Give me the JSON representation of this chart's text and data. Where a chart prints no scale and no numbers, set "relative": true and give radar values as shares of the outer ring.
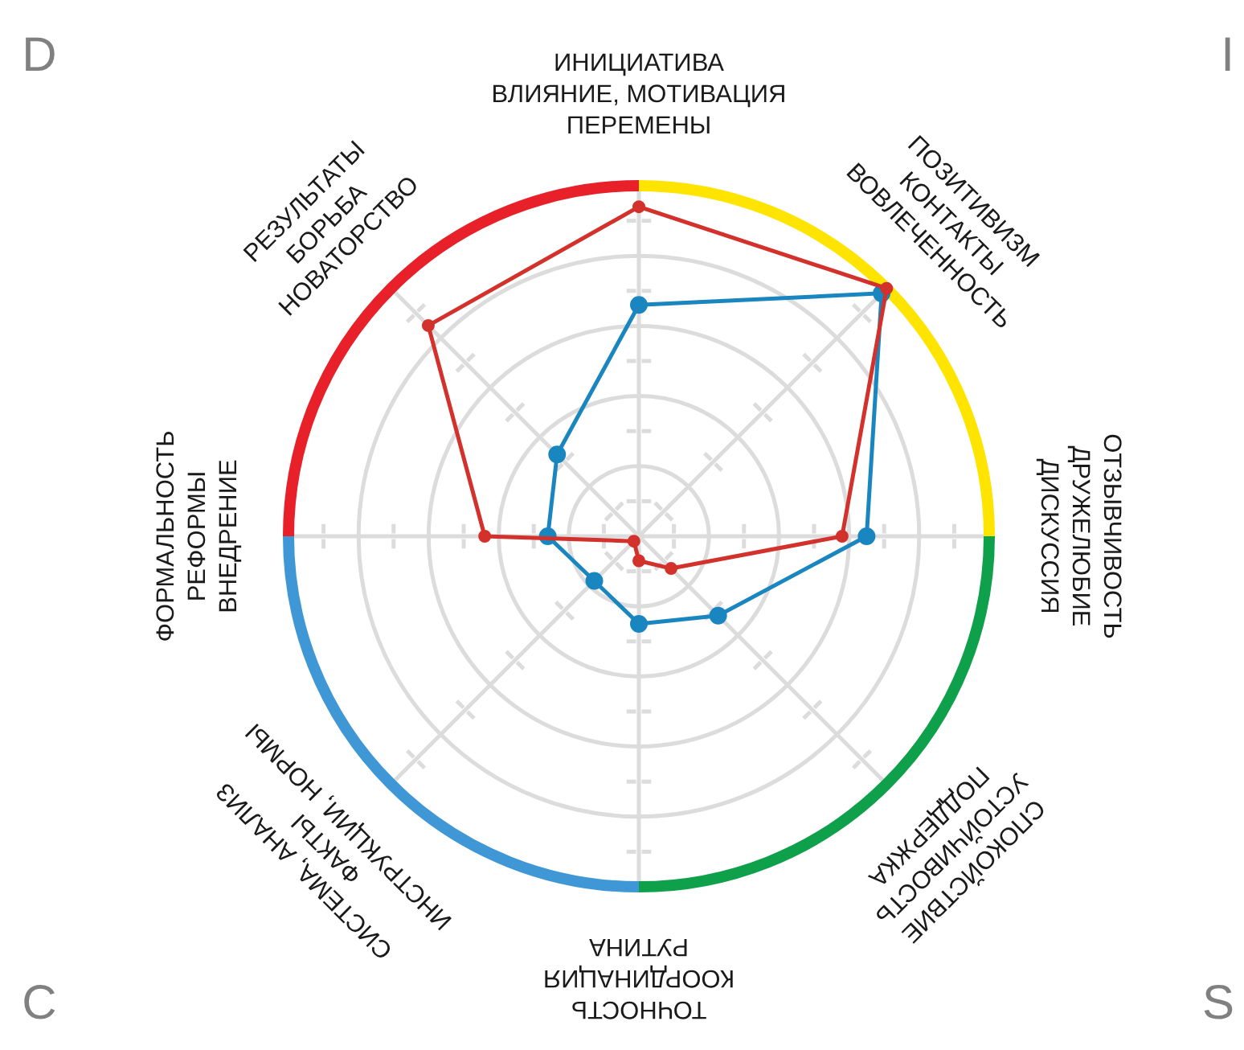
{
  "chart_data": {
    "type": "radar",
    "relative": true,
    "grid": true,
    "marker": "circle",
    "categories": [
      "ИНИЦИАТИВА\nВЛИЯНИЕ, МОТИВАЦИЯ\nПЕРЕМЕНЫ",
      "ПОЗИТИВИЗМ\nКОНТАКТЫ\nВОВЛЕЧЕННОСТЬ",
      "ОТЗЫВЧИВОСТЬ\nДРУЖЕЛЮБИЕ\nДИСКУССИЯ",
      "СПОКОЙСТВИЕ\nУСТОЙЧИВОСТЬ\nПОДДЕРЖКА",
      "ТОЧНОСТЬ\nКООРДИНАЦИЯ\nРУТИНА",
      "СИСТЕМА, АНАЛИЗ\nФАКТЫ\nИНСТРУКЦИИ, НОРМЫ",
      "ФОРМАЛЬНОСТЬ\nРЕФОРМЫ\nВНЕДРЕНИЕ",
      "РЕЗУЛЬТАТЫ\nБОРЬБА\nНОВАТОРСТВО"
    ],
    "series": [
      {
        "color": "#1a86c0",
        "values": [
          0.66,
          0.98,
          0.65,
          0.32,
          0.25,
          0.18,
          0.26,
          0.33
        ]
      },
      {
        "color": "#d3312b",
        "values": [
          0.94,
          1.0,
          0.58,
          0.13,
          0.07,
          0.02,
          0.44,
          0.85
        ]
      }
    ],
    "annotations": [
      "D",
      "I",
      "C",
      "S"
    ]
  }
}
